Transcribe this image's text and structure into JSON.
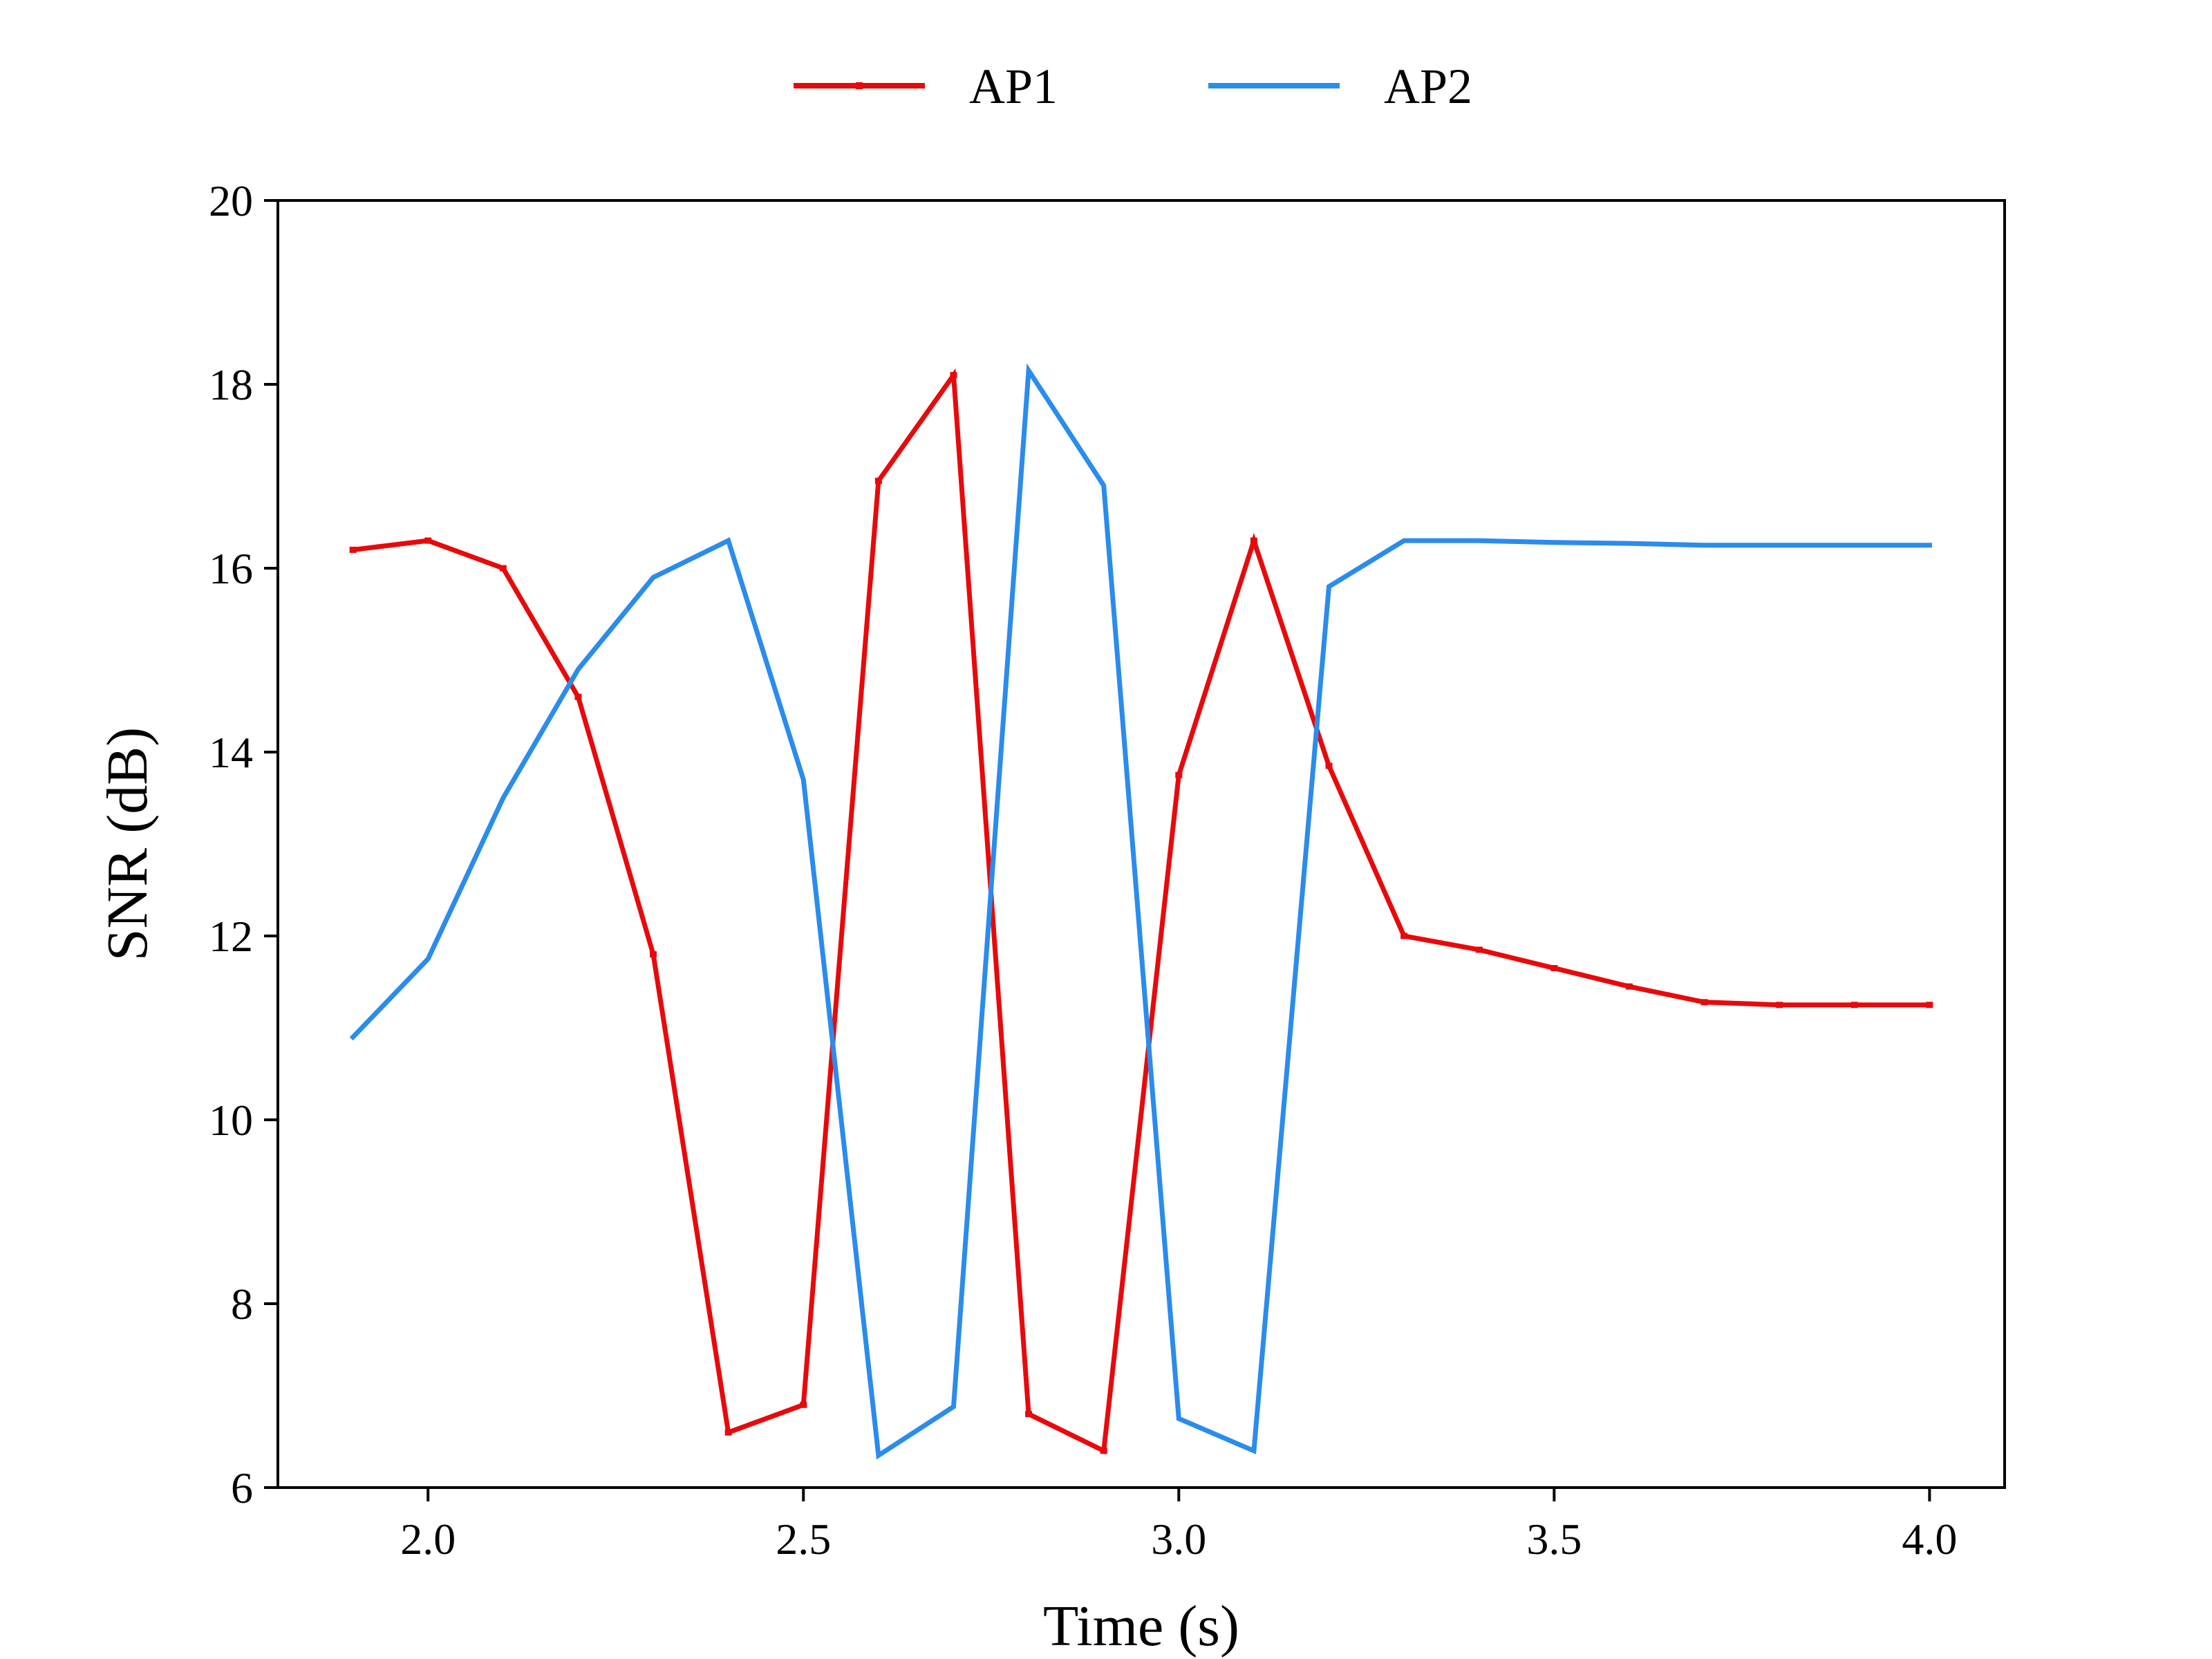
{
  "chart_data": {
    "type": "line",
    "xlabel": "Time (s)",
    "ylabel": "SNR (dB)",
    "xlim": [
      1.8,
      4.1
    ],
    "ylim": [
      6,
      20
    ],
    "xticks": [
      2.0,
      2.5,
      3.0,
      3.5,
      4.0
    ],
    "xtick_labels": [
      "2.0",
      "2.5",
      "3.0",
      "3.5",
      "4.0"
    ],
    "yticks": [
      6,
      8,
      10,
      12,
      14,
      16,
      18,
      20
    ],
    "ytick_labels": [
      "6",
      "8",
      "10",
      "12",
      "14",
      "16",
      "18",
      "20"
    ],
    "grid": false,
    "legend_placement": "top-center, outside plot, 2 columns",
    "x": [
      1.9,
      2.0,
      2.1,
      2.2,
      2.3,
      2.4,
      2.5,
      2.6,
      2.7,
      2.8,
      2.9,
      3.0,
      3.1,
      3.2,
      3.3,
      3.4,
      3.5,
      3.6,
      3.7,
      3.8,
      3.9,
      4.0
    ],
    "series": [
      {
        "name": "AP1",
        "color": "#e8090b",
        "marker": "small-tick",
        "values": [
          16.2,
          16.3,
          16.0,
          14.6,
          11.8,
          6.6,
          6.9,
          16.95,
          18.1,
          6.8,
          6.4,
          13.75,
          16.3,
          13.85,
          12.0,
          11.85,
          11.65,
          11.45,
          11.28,
          11.25,
          11.25,
          11.25
        ]
      },
      {
        "name": "AP2",
        "color": "#2a8cec",
        "marker": "none",
        "values": [
          10.9,
          11.75,
          13.5,
          14.9,
          15.9,
          16.3,
          13.7,
          6.35,
          6.88,
          18.15,
          16.9,
          6.75,
          6.4,
          15.8,
          16.3,
          16.3,
          16.28,
          16.27,
          16.25,
          16.25,
          16.25,
          16.25
        ]
      }
    ]
  }
}
